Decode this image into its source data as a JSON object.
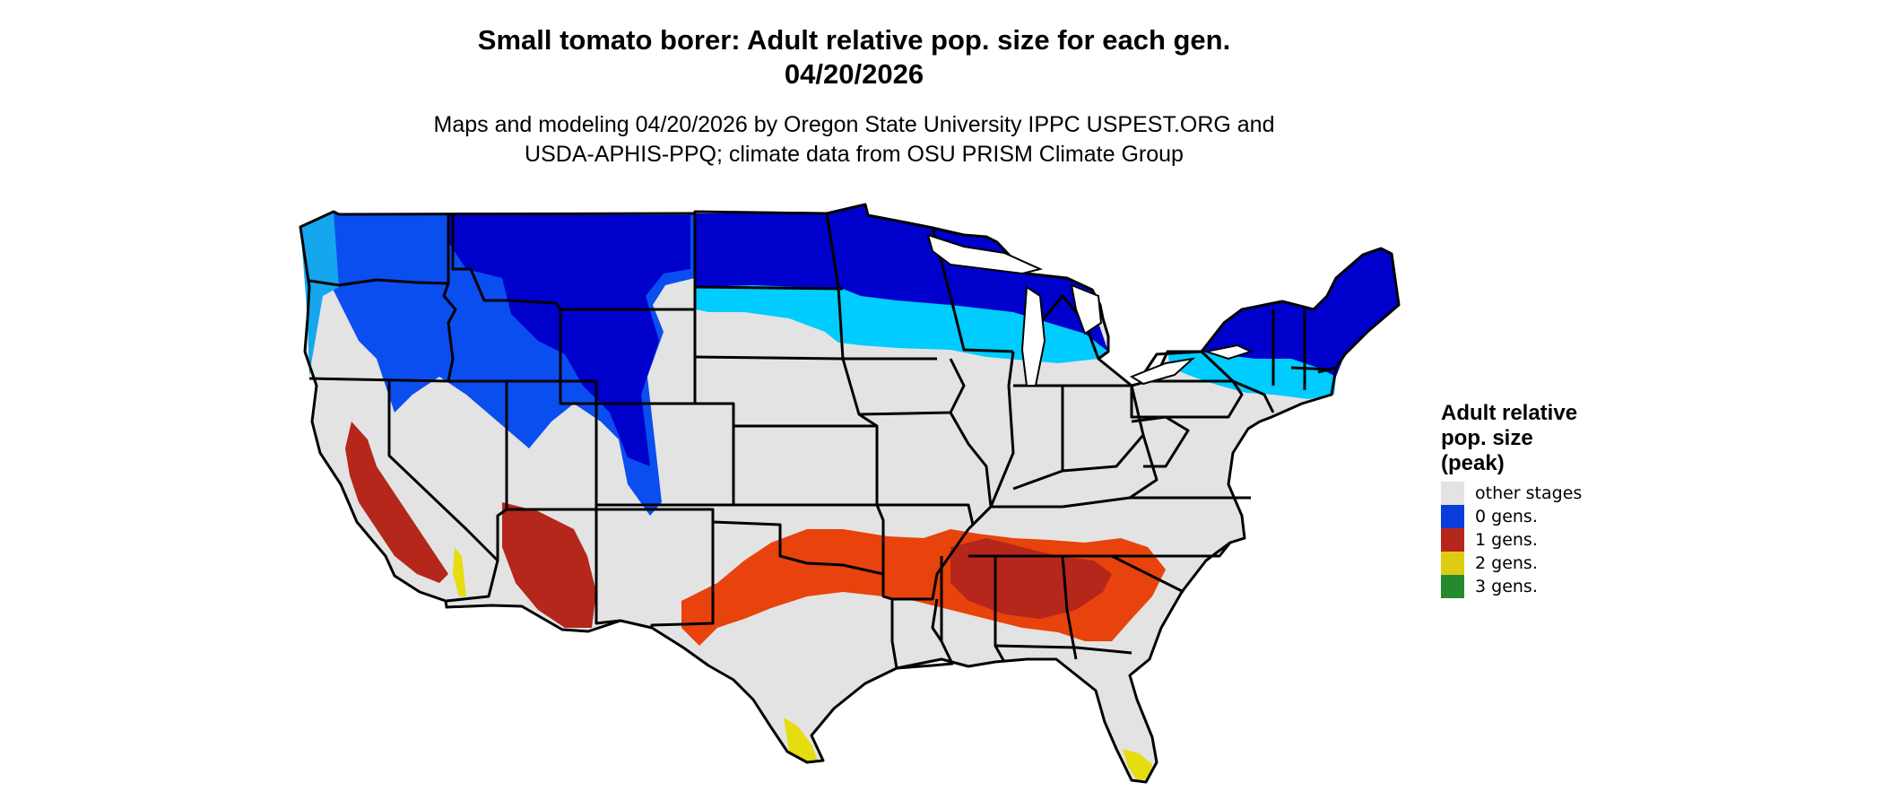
{
  "title": {
    "line1": "Small tomato borer: Adult relative pop. size for each gen.",
    "line2": "04/20/2026"
  },
  "subtitle": {
    "line1": "Maps and modeling 04/20/2026 by Oregon State University IPPC USPEST.ORG and",
    "line2": "USDA-APHIS-PPQ; climate data from OSU PRISM Climate Group"
  },
  "legend": {
    "title_lines": [
      "Adult relative",
      "pop. size",
      "(peak)"
    ],
    "items": [
      {
        "label": "other stages",
        "color": "#e3e3e3"
      },
      {
        "label": "0 gens.",
        "color": "#0a3ddc"
      },
      {
        "label": "1 gens.",
        "color": "#b5261b"
      },
      {
        "label": "2 gens.",
        "color": "#ddcc11"
      },
      {
        "label": "3 gens.",
        "color": "#238b2e"
      }
    ]
  },
  "map_colors": {
    "background_land": "#e3e3e3",
    "boundary": "#000000",
    "cold_deep": "#0000cc",
    "cold_mid": "#0a4ef0",
    "cold_light": "#16a6ee",
    "cold_pale": "#00ccff",
    "warm_dark": "#b5261b",
    "warm_orange": "#e8430c",
    "hot_yellow": "#e6dd10"
  }
}
